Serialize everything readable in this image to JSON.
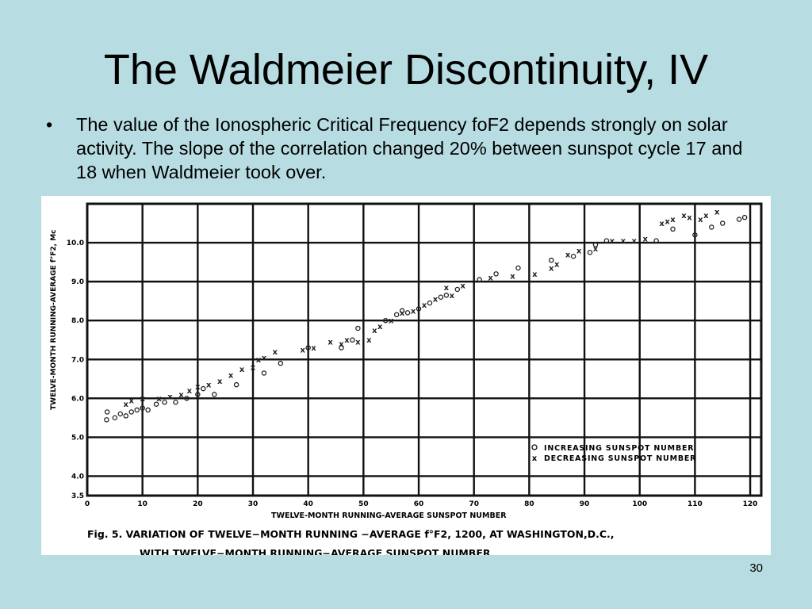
{
  "slide": {
    "title": "The Waldmeier Discontinuity, IV",
    "bullet_char": "•",
    "bullet_text": "The value of the Ionospheric Critical Frequency foF2 depends strongly on solar activity. The slope of the correlation changed 20% between sunspot cycle 17 and 18 when Waldmeier took over.",
    "page_number": "30"
  },
  "chart_data": {
    "type": "scatter",
    "xlabel": "TWELVE-MONTH RUNNING-AVERAGE SUNSPOT NUMBER",
    "ylabel": "TWELVE-MONTH RUNNING-AVERAGE f°F2, Mc",
    "xlim": [
      0,
      122
    ],
    "ylim": [
      3.5,
      11.0
    ],
    "x_ticks": [
      0,
      10,
      20,
      30,
      40,
      50,
      60,
      70,
      80,
      90,
      100,
      110,
      120
    ],
    "x_tick_labels": [
      "0",
      "10",
      "20",
      "30",
      "40",
      "50",
      "60",
      "70",
      "80",
      "90",
      "100",
      "110",
      "120"
    ],
    "y_ticks": [
      3.5,
      4.0,
      5.0,
      6.0,
      7.0,
      8.0,
      9.0,
      10.0
    ],
    "y_tick_labels": [
      "3.5",
      "4.0",
      "5.0",
      "6.0",
      "7.0",
      "8.0",
      "9.0",
      "10.0"
    ],
    "grid": true,
    "legend_position": "lower-right",
    "legend": [
      {
        "marker": "o",
        "label": "INCREASING SUNSPOT NUMBER"
      },
      {
        "marker": "x",
        "label": "DECREASING SUNSPOT NUMBER"
      }
    ],
    "caption_line1": "Fig. 5.  VARIATION OF TWELVE−MONTH RUNNING −AVERAGE f°F2, 1200, AT WASHINGTON,D.C.,",
    "caption_line2": "WITH  TWELVE−MONTH RUNNING−AVERAGE SUNSPOT NUMBER",
    "series": [
      {
        "name": "INCREASING SUNSPOT NUMBER",
        "marker": "o",
        "points": [
          [
            3.5,
            5.45
          ],
          [
            3.6,
            5.65
          ],
          [
            5,
            5.5
          ],
          [
            6,
            5.6
          ],
          [
            7,
            5.55
          ],
          [
            8,
            5.65
          ],
          [
            9,
            5.7
          ],
          [
            10,
            5.75
          ],
          [
            11,
            5.7
          ],
          [
            12.5,
            5.85
          ],
          [
            14,
            5.9
          ],
          [
            16,
            5.9
          ],
          [
            18,
            6.0
          ],
          [
            20,
            6.1
          ],
          [
            21,
            6.25
          ],
          [
            23,
            6.1
          ],
          [
            27,
            6.35
          ],
          [
            32,
            6.65
          ],
          [
            35,
            6.9
          ],
          [
            40,
            7.3
          ],
          [
            46,
            7.3
          ],
          [
            48,
            7.5
          ],
          [
            49,
            7.8
          ],
          [
            54,
            8.0
          ],
          [
            56,
            8.15
          ],
          [
            57,
            8.25
          ],
          [
            58,
            8.2
          ],
          [
            60,
            8.3
          ],
          [
            62,
            8.45
          ],
          [
            64,
            8.6
          ],
          [
            65,
            8.65
          ],
          [
            67,
            8.8
          ],
          [
            71,
            9.05
          ],
          [
            74,
            9.2
          ],
          [
            78,
            9.35
          ],
          [
            84,
            9.55
          ],
          [
            88,
            9.65
          ],
          [
            91,
            9.75
          ],
          [
            92,
            9.95
          ],
          [
            94,
            10.05
          ],
          [
            103,
            10.05
          ],
          [
            106,
            10.35
          ],
          [
            110,
            10.2
          ],
          [
            113,
            10.4
          ],
          [
            115,
            10.5
          ],
          [
            118,
            10.6
          ],
          [
            119,
            10.65
          ]
        ]
      },
      {
        "name": "DECREASING SUNSPOT NUMBER",
        "marker": "x",
        "points": [
          [
            7,
            5.85
          ],
          [
            8,
            5.95
          ],
          [
            10,
            6.0
          ],
          [
            13,
            6.0
          ],
          [
            15,
            6.05
          ],
          [
            17,
            6.1
          ],
          [
            18.5,
            6.2
          ],
          [
            20,
            6.3
          ],
          [
            22,
            6.35
          ],
          [
            24,
            6.45
          ],
          [
            26,
            6.6
          ],
          [
            28,
            6.75
          ],
          [
            30,
            6.8
          ],
          [
            31,
            7.0
          ],
          [
            32,
            7.05
          ],
          [
            34,
            7.2
          ],
          [
            39,
            7.25
          ],
          [
            41,
            7.3
          ],
          [
            44,
            7.45
          ],
          [
            46,
            7.4
          ],
          [
            47,
            7.5
          ],
          [
            49,
            7.45
          ],
          [
            51,
            7.5
          ],
          [
            52,
            7.75
          ],
          [
            53,
            7.85
          ],
          [
            55,
            8.0
          ],
          [
            57,
            8.2
          ],
          [
            59,
            8.25
          ],
          [
            61,
            8.4
          ],
          [
            63,
            8.55
          ],
          [
            65,
            8.85
          ],
          [
            66,
            8.65
          ],
          [
            68,
            8.9
          ],
          [
            73,
            9.1
          ],
          [
            77,
            9.15
          ],
          [
            81,
            9.2
          ],
          [
            84,
            9.35
          ],
          [
            85,
            9.45
          ],
          [
            87,
            9.7
          ],
          [
            89,
            9.8
          ],
          [
            92,
            9.85
          ],
          [
            95,
            10.05
          ],
          [
            97,
            10.05
          ],
          [
            99,
            10.05
          ],
          [
            101,
            10.1
          ],
          [
            104,
            10.5
          ],
          [
            105,
            10.55
          ],
          [
            106,
            10.6
          ],
          [
            108,
            10.7
          ],
          [
            109,
            10.65
          ],
          [
            111,
            10.6
          ],
          [
            112,
            10.7
          ],
          [
            114,
            10.8
          ]
        ]
      }
    ]
  }
}
